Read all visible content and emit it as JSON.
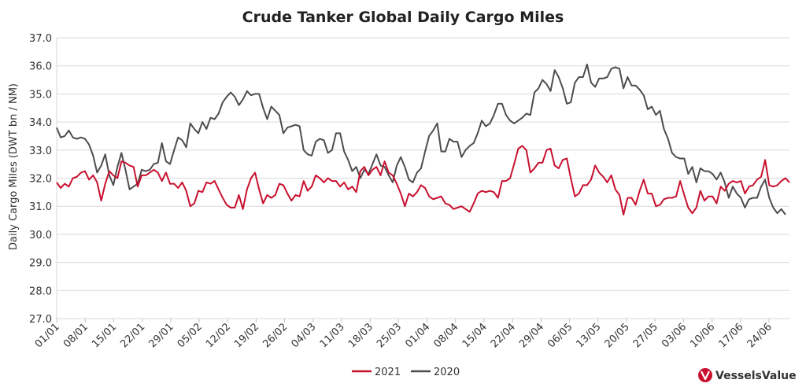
{
  "chart_data": {
    "type": "line",
    "title": "Crude Tanker Global Daily Cargo Miles",
    "ylabel": "Daily Cargo Miles (DWT bn / NM)",
    "xlabel": "",
    "ylim": [
      27.0,
      37.0
    ],
    "yticks": [
      "37.0",
      "36.0",
      "35.0",
      "34.0",
      "33.0",
      "32.0",
      "31.0",
      "30.0",
      "29.0",
      "28.0",
      "27.0"
    ],
    "x_tick_labels": [
      "01/01",
      "08/01",
      "15/01",
      "22/01",
      "29/01",
      "05/02",
      "12/02",
      "19/02",
      "26/02",
      "04/03",
      "11/03",
      "18/03",
      "25/03",
      "01/04",
      "08/04",
      "15/04",
      "22/04",
      "29/04",
      "06/05",
      "13/05",
      "20/05",
      "27/05",
      "03/06",
      "10/06",
      "17/06",
      "24/06"
    ],
    "grid": true,
    "legend_position": "bottom",
    "series": [
      {
        "name": "2021",
        "color": "#c8102e",
        "values": [
          31.85,
          31.65,
          31.8,
          31.7,
          32.0,
          32.05,
          32.2,
          32.25,
          31.95,
          32.1,
          31.85,
          31.2,
          31.8,
          32.25,
          32.1,
          32.0,
          32.6,
          32.55,
          32.45,
          32.4,
          31.7,
          32.1,
          32.1,
          32.2,
          32.3,
          32.2,
          31.9,
          32.2,
          31.8,
          31.8,
          31.65,
          31.85,
          31.55,
          31.0,
          31.1,
          31.55,
          31.5,
          31.85,
          31.8,
          31.9,
          31.6,
          31.3,
          31.05,
          30.95,
          30.95,
          31.4,
          30.9,
          31.6,
          32.0,
          32.2,
          31.6,
          31.1,
          31.4,
          31.3,
          31.4,
          31.8,
          31.75,
          31.45,
          31.2,
          31.4,
          31.35,
          31.9,
          31.55,
          31.7,
          32.1,
          32.0,
          31.85,
          32.0,
          31.9,
          31.9,
          31.7,
          31.85,
          31.6,
          31.7,
          31.5,
          32.25,
          32.4,
          32.1,
          32.3,
          32.4,
          32.1,
          32.6,
          32.2,
          32.1,
          31.8,
          31.45,
          31.0,
          31.45,
          31.35,
          31.5,
          31.75,
          31.65,
          31.35,
          31.25,
          31.3,
          31.35,
          31.1,
          31.05,
          30.9,
          30.95,
          31.0,
          30.9,
          30.8,
          31.1,
          31.45,
          31.55,
          31.5,
          31.55,
          31.5,
          31.3,
          31.9,
          31.9,
          32.0,
          32.5,
          33.05,
          33.15,
          33.0,
          32.2,
          32.35,
          32.55,
          32.55,
          33.0,
          33.05,
          32.45,
          32.35,
          32.65,
          32.7,
          32.0,
          31.35,
          31.45,
          31.75,
          31.75,
          31.95,
          32.45,
          32.2,
          32.05,
          31.85,
          32.1,
          31.6,
          31.4,
          30.7,
          31.3,
          31.3,
          31.05,
          31.55,
          31.95,
          31.45,
          31.45,
          31.0,
          31.05,
          31.25,
          31.3,
          31.3,
          31.35,
          31.9,
          31.4,
          30.95,
          30.75,
          30.95,
          31.55,
          31.2,
          31.35,
          31.35,
          31.1,
          31.7,
          31.55,
          31.8,
          31.9,
          31.85,
          31.9,
          31.45,
          31.7,
          31.75,
          31.95,
          32.05,
          32.65,
          31.75,
          31.7,
          31.75,
          31.9,
          32.0,
          31.85
        ]
      },
      {
        "name": "2020",
        "color": "#4d4d4f",
        "values": [
          33.8,
          33.45,
          33.5,
          33.7,
          33.45,
          33.4,
          33.45,
          33.4,
          33.2,
          32.8,
          32.2,
          32.45,
          32.85,
          32.1,
          31.75,
          32.4,
          32.9,
          32.3,
          31.6,
          31.7,
          31.8,
          32.3,
          32.25,
          32.3,
          32.5,
          32.55,
          33.25,
          32.6,
          32.5,
          33.0,
          33.45,
          33.35,
          33.1,
          33.95,
          33.75,
          33.6,
          34.0,
          33.75,
          34.15,
          34.1,
          34.3,
          34.7,
          34.9,
          35.05,
          34.9,
          34.6,
          34.8,
          35.1,
          34.95,
          35.0,
          35.0,
          34.5,
          34.1,
          34.55,
          34.4,
          34.25,
          33.6,
          33.8,
          33.85,
          33.9,
          33.85,
          33.0,
          32.85,
          32.8,
          33.3,
          33.4,
          33.35,
          32.9,
          33.0,
          33.6,
          33.6,
          32.95,
          32.65,
          32.25,
          32.4,
          32.0,
          32.3,
          32.15,
          32.5,
          32.85,
          32.45,
          32.4,
          32.1,
          31.85,
          32.45,
          32.75,
          32.4,
          31.95,
          31.85,
          32.2,
          32.35,
          32.95,
          33.5,
          33.7,
          33.95,
          32.95,
          32.95,
          33.4,
          33.3,
          33.3,
          32.75,
          33.0,
          33.15,
          33.25,
          33.6,
          34.05,
          33.85,
          33.95,
          34.25,
          34.65,
          34.65,
          34.25,
          34.05,
          33.95,
          34.05,
          34.15,
          34.3,
          34.25,
          35.05,
          35.2,
          35.5,
          35.35,
          35.1,
          35.85,
          35.6,
          35.2,
          34.65,
          34.7,
          35.4,
          35.6,
          35.6,
          36.05,
          35.4,
          35.25,
          35.55,
          35.55,
          35.6,
          35.9,
          35.95,
          35.9,
          35.2,
          35.6,
          35.3,
          35.3,
          35.15,
          34.95,
          34.45,
          34.55,
          34.25,
          34.4,
          33.75,
          33.4,
          32.9,
          32.75,
          32.7,
          32.7,
          32.15,
          32.4,
          31.85,
          32.35,
          32.25,
          32.25,
          32.15,
          31.95,
          32.2,
          31.85,
          31.3,
          31.7,
          31.45,
          31.3,
          30.95,
          31.25,
          31.3,
          31.3,
          31.7,
          31.95,
          31.3,
          30.95,
          30.75,
          30.9,
          30.7
        ]
      }
    ]
  },
  "legend": {
    "items": [
      {
        "label": "2021",
        "color": "#c8102e"
      },
      {
        "label": "2020",
        "color": "#4d4d4f"
      }
    ]
  },
  "brand": {
    "name": "VesselsValue",
    "icon": "vesselsvalue-logo-icon",
    "color": "#c8102e"
  }
}
